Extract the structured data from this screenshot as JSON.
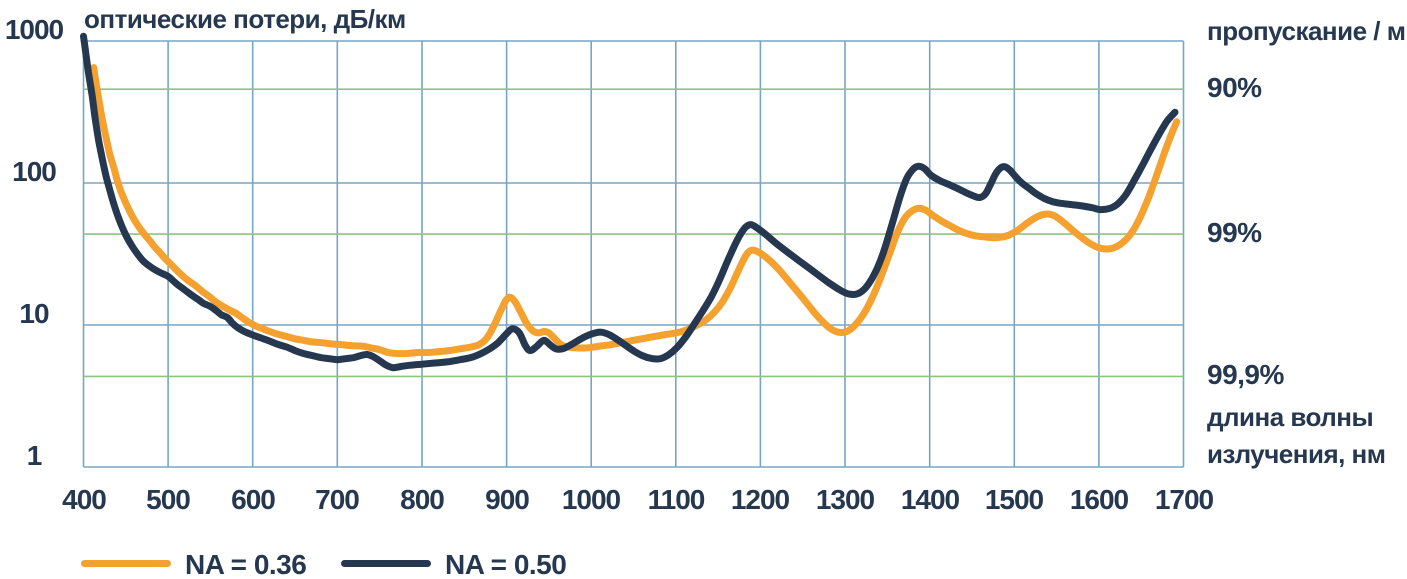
{
  "colors": {
    "background": "#ffffff",
    "text": "#263850",
    "grid_blue": "#78a5c4",
    "grid_green": "#8cc57d",
    "na036_orange": "#f5a12f",
    "na050_navy": "#253850"
  },
  "chart_data": {
    "type": "line",
    "title_left": "оптические потери, дБ/км",
    "title_right": "пропускание / м",
    "x_axis": {
      "label_line1": "длина волны",
      "label_line2": "излучения, нм",
      "range": [
        400,
        1700
      ],
      "ticks": [
        400,
        500,
        600,
        700,
        800,
        900,
        1000,
        1100,
        1200,
        1300,
        1400,
        1500,
        1600,
        1700
      ]
    },
    "y_axis_left": {
      "label": "оптические потери, дБ/км",
      "scale": "log",
      "range": [
        1,
        1000
      ],
      "ticks": [
        1000,
        100,
        10,
        1
      ]
    },
    "y_axis_right": {
      "label": "пропускание / м",
      "tick_labels": [
        "90%",
        "99%",
        "99,9%"
      ],
      "tick_values_db_per_km": [
        457.6,
        43.65,
        4.343
      ]
    },
    "legend": {
      "position": "bottom-left",
      "entries": [
        "NA = 0.36",
        "NA = 0.50"
      ]
    },
    "series": [
      {
        "name": "NA = 0.36",
        "color": "#f5a12f",
        "points": [
          [
            412,
            650
          ],
          [
            415,
            500
          ],
          [
            419,
            360
          ],
          [
            423,
            265
          ],
          [
            427,
            205
          ],
          [
            431,
            160
          ],
          [
            436,
            127
          ],
          [
            440,
            104
          ],
          [
            444,
            88
          ],
          [
            448,
            77
          ],
          [
            452,
            68
          ],
          [
            456,
            61
          ],
          [
            460,
            55
          ],
          [
            466,
            48.5
          ],
          [
            472,
            43.5
          ],
          [
            478,
            39.5
          ],
          [
            484,
            35.5
          ],
          [
            490,
            32.5
          ],
          [
            495,
            30
          ],
          [
            500,
            28
          ],
          [
            508,
            25
          ],
          [
            516,
            22.5
          ],
          [
            524,
            20.5
          ],
          [
            532,
            19
          ],
          [
            540,
            17.3
          ],
          [
            548,
            16
          ],
          [
            556,
            14.6
          ],
          [
            564,
            13.6
          ],
          [
            572,
            12.8
          ],
          [
            580,
            12.1
          ],
          [
            588,
            11.2
          ],
          [
            596,
            10.4
          ],
          [
            604,
            9.8
          ],
          [
            612,
            9.4
          ],
          [
            620,
            9.0
          ],
          [
            630,
            8.6
          ],
          [
            640,
            8.3
          ],
          [
            650,
            8.0
          ],
          [
            660,
            7.8
          ],
          [
            670,
            7.6
          ],
          [
            682,
            7.5
          ],
          [
            694,
            7.35
          ],
          [
            706,
            7.25
          ],
          [
            718,
            7.15
          ],
          [
            730,
            7.1
          ],
          [
            740,
            6.9
          ],
          [
            750,
            6.7
          ],
          [
            760,
            6.4
          ],
          [
            770,
            6.3
          ],
          [
            782,
            6.3
          ],
          [
            795,
            6.4
          ],
          [
            808,
            6.4
          ],
          [
            820,
            6.5
          ],
          [
            832,
            6.6
          ],
          [
            845,
            6.8
          ],
          [
            858,
            7.0
          ],
          [
            868,
            7.3
          ],
          [
            876,
            8.0
          ],
          [
            884,
            9.6
          ],
          [
            892,
            12.2
          ],
          [
            899,
            14.8
          ],
          [
            904,
            15.7
          ],
          [
            910,
            14.6
          ],
          [
            917,
            12.2
          ],
          [
            924,
            10.2
          ],
          [
            931,
            9.1
          ],
          [
            938,
            8.8
          ],
          [
            944,
            9.0
          ],
          [
            950,
            8.8
          ],
          [
            957,
            8.0
          ],
          [
            964,
            7.3
          ],
          [
            972,
            7.0
          ],
          [
            982,
            6.9
          ],
          [
            995,
            6.9
          ],
          [
            1010,
            7.1
          ],
          [
            1025,
            7.3
          ],
          [
            1040,
            7.6
          ],
          [
            1055,
            7.9
          ],
          [
            1070,
            8.2
          ],
          [
            1085,
            8.5
          ],
          [
            1100,
            8.8
          ],
          [
            1112,
            9.2
          ],
          [
            1124,
            9.9
          ],
          [
            1135,
            10.8
          ],
          [
            1145,
            12.2
          ],
          [
            1155,
            14.5
          ],
          [
            1165,
            18.5
          ],
          [
            1175,
            25
          ],
          [
            1183,
            31
          ],
          [
            1189,
            33.5
          ],
          [
            1196,
            33
          ],
          [
            1208,
            29.5
          ],
          [
            1222,
            24.5
          ],
          [
            1236,
            19.5
          ],
          [
            1250,
            15.5
          ],
          [
            1262,
            12.6
          ],
          [
            1272,
            10.8
          ],
          [
            1282,
            9.5
          ],
          [
            1292,
            8.9
          ],
          [
            1302,
            9.0
          ],
          [
            1312,
            10
          ],
          [
            1322,
            12
          ],
          [
            1332,
            15.5
          ],
          [
            1342,
            21.5
          ],
          [
            1352,
            31
          ],
          [
            1362,
            45
          ],
          [
            1371,
            57
          ],
          [
            1380,
            64
          ],
          [
            1388,
            66.5
          ],
          [
            1396,
            64
          ],
          [
            1404,
            59
          ],
          [
            1414,
            54
          ],
          [
            1424,
            50
          ],
          [
            1434,
            46.5
          ],
          [
            1444,
            44
          ],
          [
            1454,
            42.5
          ],
          [
            1464,
            41.8
          ],
          [
            1474,
            41.2
          ],
          [
            1484,
            41.5
          ],
          [
            1494,
            43
          ],
          [
            1504,
            46.5
          ],
          [
            1514,
            51.5
          ],
          [
            1524,
            56.5
          ],
          [
            1532,
            59.5
          ],
          [
            1540,
            60.5
          ],
          [
            1548,
            58.5
          ],
          [
            1558,
            53
          ],
          [
            1568,
            47
          ],
          [
            1578,
            42
          ],
          [
            1588,
            38
          ],
          [
            1598,
            35.3
          ],
          [
            1608,
            34.3
          ],
          [
            1618,
            35
          ],
          [
            1628,
            38
          ],
          [
            1638,
            44
          ],
          [
            1648,
            56
          ],
          [
            1658,
            77
          ],
          [
            1668,
            112
          ],
          [
            1677,
            160
          ],
          [
            1685,
            215
          ],
          [
            1692,
            270
          ]
        ]
      },
      {
        "name": "NA = 0.50",
        "color": "#253850",
        "points": [
          [
            400,
            1080
          ],
          [
            403,
            800
          ],
          [
            406,
            590
          ],
          [
            410,
            420
          ],
          [
            414,
            280
          ],
          [
            418,
            198
          ],
          [
            422,
            150
          ],
          [
            426,
            116
          ],
          [
            430,
            94
          ],
          [
            435,
            74
          ],
          [
            440,
            60
          ],
          [
            445,
            50
          ],
          [
            450,
            43
          ],
          [
            455,
            38
          ],
          [
            460,
            34
          ],
          [
            470,
            28.5
          ],
          [
            480,
            25.5
          ],
          [
            490,
            23.5
          ],
          [
            500,
            22
          ],
          [
            510,
            19.5
          ],
          [
            520,
            17.6
          ],
          [
            528,
            16.2
          ],
          [
            535,
            15.2
          ],
          [
            542,
            14.2
          ],
          [
            550,
            13.5
          ],
          [
            557,
            12.6
          ],
          [
            563,
            11.8
          ],
          [
            570,
            11.3
          ],
          [
            576,
            10.3
          ],
          [
            582,
            9.6
          ],
          [
            590,
            9.0
          ],
          [
            600,
            8.5
          ],
          [
            610,
            8.1
          ],
          [
            620,
            7.7
          ],
          [
            630,
            7.3
          ],
          [
            640,
            7.0
          ],
          [
            650,
            6.6
          ],
          [
            660,
            6.3
          ],
          [
            670,
            6.1
          ],
          [
            680,
            5.9
          ],
          [
            690,
            5.8
          ],
          [
            700,
            5.7
          ],
          [
            710,
            5.8
          ],
          [
            720,
            5.9
          ],
          [
            728,
            6.1
          ],
          [
            735,
            6.2
          ],
          [
            742,
            6.0
          ],
          [
            750,
            5.6
          ],
          [
            758,
            5.2
          ],
          [
            766,
            5.0
          ],
          [
            775,
            5.1
          ],
          [
            785,
            5.2
          ],
          [
            800,
            5.3
          ],
          [
            815,
            5.4
          ],
          [
            830,
            5.5
          ],
          [
            845,
            5.7
          ],
          [
            858,
            5.9
          ],
          [
            870,
            6.3
          ],
          [
            880,
            6.8
          ],
          [
            890,
            7.5
          ],
          [
            900,
            8.7
          ],
          [
            907,
            9.4
          ],
          [
            915,
            8.8
          ],
          [
            922,
            7.2
          ],
          [
            928,
            6.6
          ],
          [
            936,
            7.1
          ],
          [
            944,
            7.8
          ],
          [
            952,
            7.2
          ],
          [
            958,
            6.8
          ],
          [
            966,
            6.8
          ],
          [
            975,
            7.2
          ],
          [
            985,
            7.8
          ],
          [
            995,
            8.4
          ],
          [
            1005,
            8.8
          ],
          [
            1012,
            8.9
          ],
          [
            1022,
            8.5
          ],
          [
            1035,
            7.6
          ],
          [
            1048,
            6.7
          ],
          [
            1060,
            6.1
          ],
          [
            1072,
            5.8
          ],
          [
            1082,
            5.8
          ],
          [
            1092,
            6.2
          ],
          [
            1102,
            7.0
          ],
          [
            1112,
            8.3
          ],
          [
            1122,
            10.2
          ],
          [
            1132,
            12.6
          ],
          [
            1142,
            15.8
          ],
          [
            1152,
            21
          ],
          [
            1162,
            29
          ],
          [
            1172,
            39
          ],
          [
            1180,
            47
          ],
          [
            1186,
            50.5
          ],
          [
            1192,
            50
          ],
          [
            1205,
            44
          ],
          [
            1220,
            37
          ],
          [
            1240,
            30
          ],
          [
            1260,
            24.5
          ],
          [
            1280,
            20
          ],
          [
            1295,
            17.5
          ],
          [
            1305,
            16.5
          ],
          [
            1315,
            16.6
          ],
          [
            1325,
            18.5
          ],
          [
            1335,
            23
          ],
          [
            1345,
            32
          ],
          [
            1355,
            50
          ],
          [
            1365,
            80
          ],
          [
            1373,
            108
          ],
          [
            1381,
            126
          ],
          [
            1387,
            131
          ],
          [
            1394,
            126
          ],
          [
            1402,
            113
          ],
          [
            1412,
            104
          ],
          [
            1422,
            98
          ],
          [
            1432,
            92
          ],
          [
            1442,
            86
          ],
          [
            1452,
            81
          ],
          [
            1459,
            79
          ],
          [
            1466,
            84
          ],
          [
            1472,
            98
          ],
          [
            1478,
            116
          ],
          [
            1484,
            128
          ],
          [
            1489,
            130
          ],
          [
            1495,
            123
          ],
          [
            1502,
            110
          ],
          [
            1509,
            100
          ],
          [
            1517,
            92
          ],
          [
            1526,
            84
          ],
          [
            1535,
            78
          ],
          [
            1545,
            74
          ],
          [
            1555,
            72
          ],
          [
            1568,
            70.5
          ],
          [
            1580,
            69
          ],
          [
            1592,
            67
          ],
          [
            1602,
            65
          ],
          [
            1612,
            66
          ],
          [
            1622,
            71
          ],
          [
            1632,
            83
          ],
          [
            1642,
            105
          ],
          [
            1652,
            135
          ],
          [
            1662,
            175
          ],
          [
            1672,
            225
          ],
          [
            1681,
            275
          ],
          [
            1690,
            315
          ]
        ]
      }
    ]
  }
}
